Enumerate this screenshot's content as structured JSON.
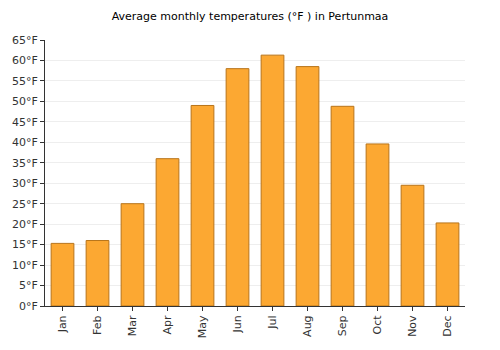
{
  "chart_data": {
    "type": "bar",
    "title": "Average monthly temperatures (°F ) in Pertunmaa",
    "categories": [
      "Jan",
      "Feb",
      "Mar",
      "Apr",
      "May",
      "Jun",
      "Jul",
      "Aug",
      "Sep",
      "Oct",
      "Nov",
      "Dec"
    ],
    "values": [
      15.3,
      16,
      25,
      36,
      49,
      58,
      61.3,
      58.5,
      48.8,
      39.6,
      29.5,
      20.3
    ],
    "color": "#fca832",
    "ylim": [
      0,
      65
    ],
    "yticks": [
      {
        "value": 0,
        "label": "0°F"
      },
      {
        "value": 5,
        "label": "5°F"
      },
      {
        "value": 10,
        "label": "10°F"
      },
      {
        "value": 15,
        "label": "15°F"
      },
      {
        "value": 20,
        "label": "20°F"
      },
      {
        "value": 25,
        "label": "25°F"
      },
      {
        "value": 30,
        "label": "30°F"
      },
      {
        "value": 35,
        "label": "35°F"
      },
      {
        "value": 40,
        "label": "40°F"
      },
      {
        "value": 45,
        "label": "45°F"
      },
      {
        "value": 50,
        "label": "50°F"
      },
      {
        "value": 55,
        "label": "55°F"
      },
      {
        "value": 60,
        "label": "60°F"
      },
      {
        "value": 65,
        "label": "65°F"
      }
    ],
    "grid": true
  }
}
